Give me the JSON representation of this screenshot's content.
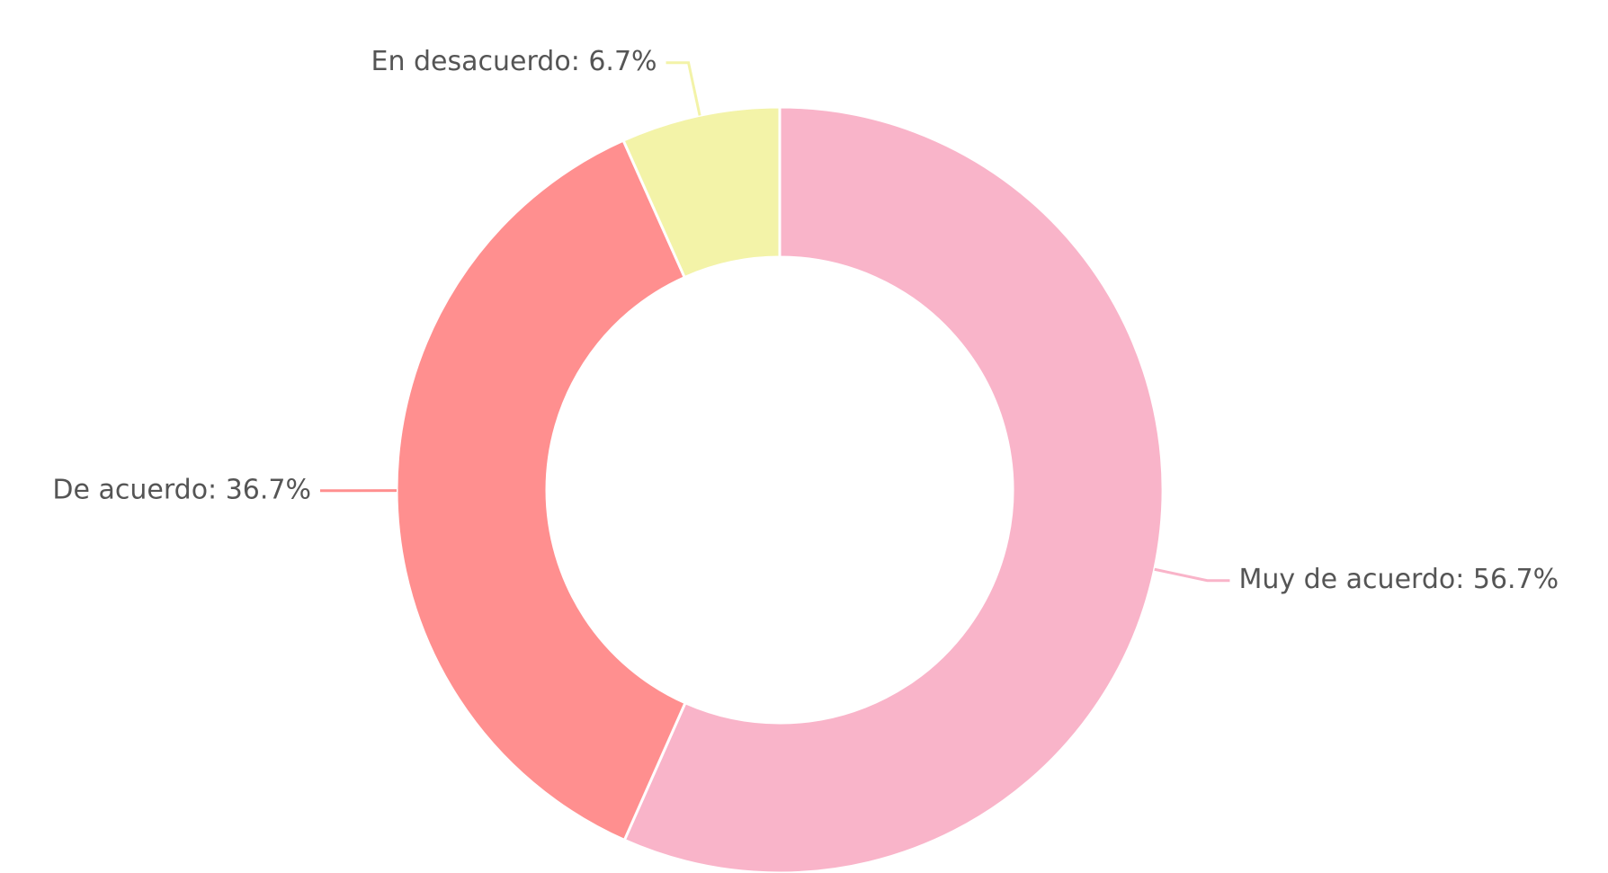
{
  "chart_data": {
    "type": "pie",
    "donut": true,
    "values": [
      56.7,
      36.7,
      6.7
    ],
    "value_labels": [
      "Muy de acuerdo: 56.7%",
      "De acuerdo: 36.7%",
      "En desacuerdo: 6.7%"
    ],
    "colors": [
      "#f9b4c9",
      "#ff8f8f",
      "#f3f3a8"
    ]
  }
}
